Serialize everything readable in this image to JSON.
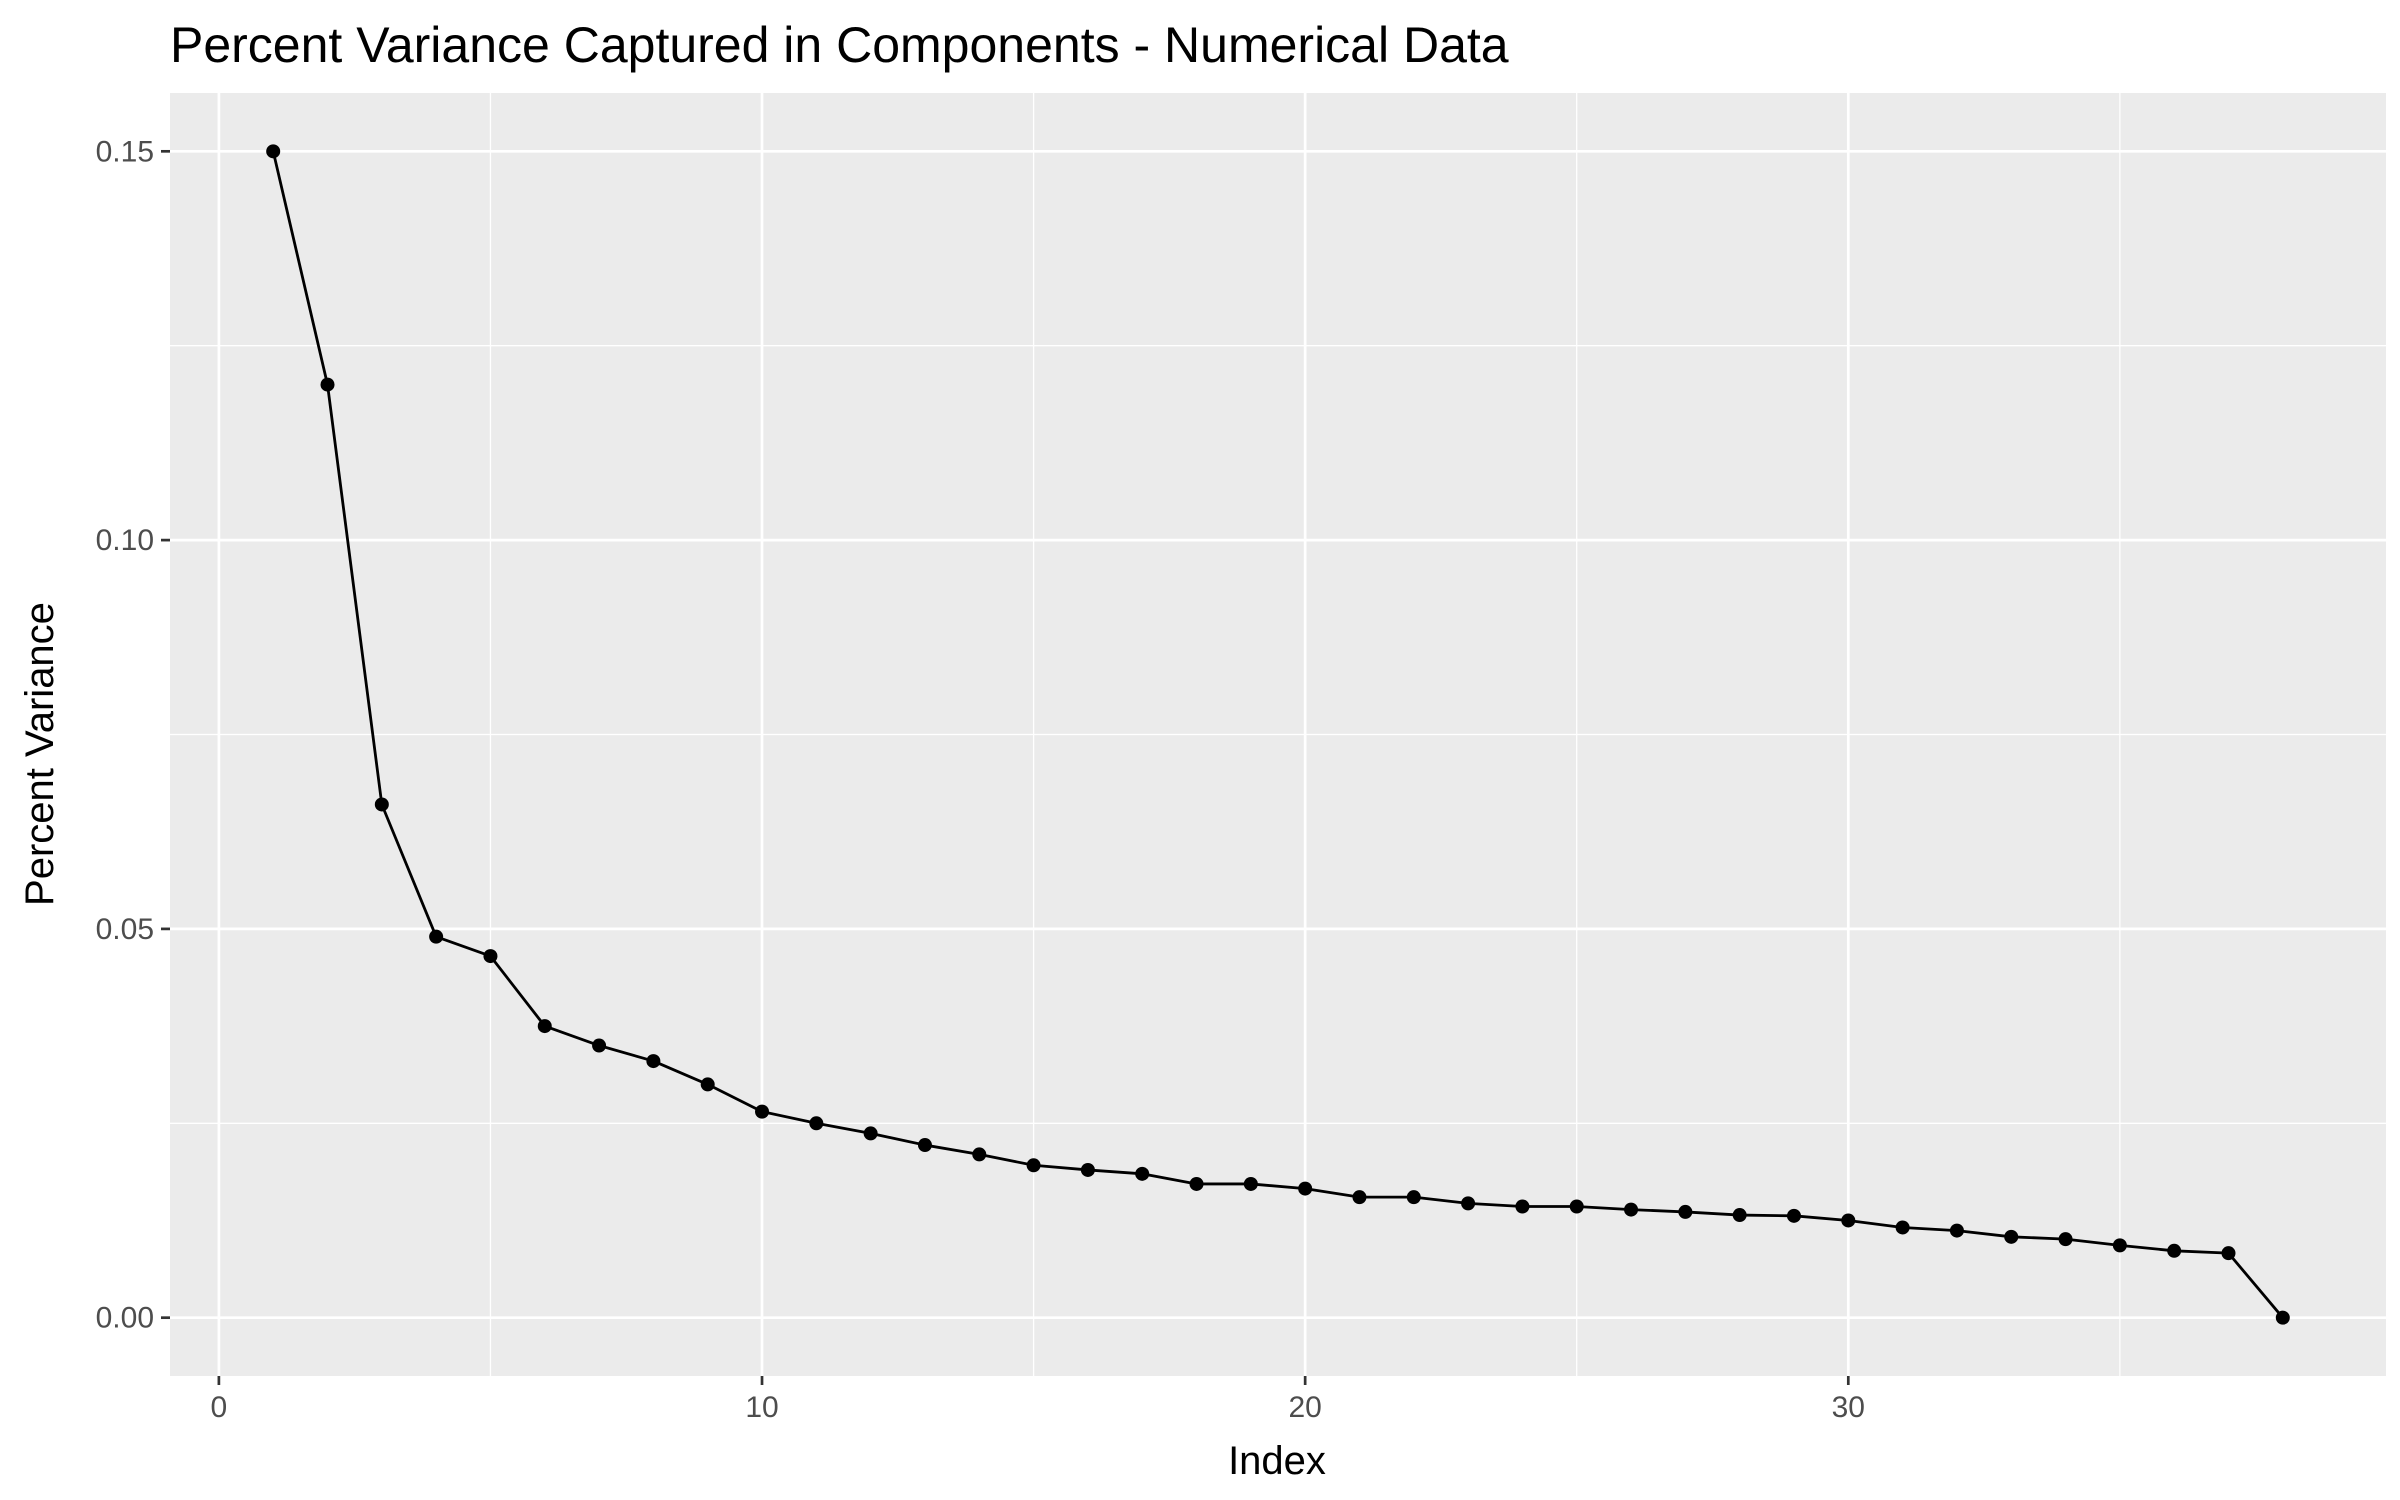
{
  "chart_data": {
    "type": "line",
    "title": "Percent Variance Captured in Components - Numerical Data",
    "xlabel": "Index",
    "ylabel": "Percent Variance",
    "xlim": [
      -0.9,
      39.9
    ],
    "ylim": [
      -0.0075,
      0.1575
    ],
    "x_ticks": [
      0,
      10,
      20,
      30
    ],
    "x_tick_labels": [
      "0",
      "10",
      "20",
      "30"
    ],
    "y_ticks": [
      0.0,
      0.05,
      0.1,
      0.15
    ],
    "y_tick_labels": [
      "0.00",
      "0.05",
      "0.10",
      "0.15"
    ],
    "grid": true,
    "background": "#ebebeb",
    "grid_color": "#ffffff",
    "series": [
      {
        "color": "#000000",
        "x": [
          1,
          2,
          3,
          4,
          5,
          6,
          7,
          8,
          9,
          10,
          11,
          12,
          13,
          14,
          15,
          16,
          17,
          18,
          19,
          20,
          21,
          22,
          23,
          24,
          25,
          26,
          27,
          28,
          29,
          30,
          31,
          32,
          33,
          34,
          35,
          36,
          37,
          38
        ],
        "y": [
          0.15,
          0.12,
          0.066,
          0.049,
          0.0465,
          0.0375,
          0.035,
          0.033,
          0.03,
          0.0265,
          0.025,
          0.0237,
          0.0222,
          0.021,
          0.0196,
          0.019,
          0.0185,
          0.0172,
          0.0172,
          0.0166,
          0.0155,
          0.0155,
          0.0147,
          0.0143,
          0.0143,
          0.0139,
          0.0136,
          0.0132,
          0.0131,
          0.0125,
          0.0116,
          0.0112,
          0.0104,
          0.0101,
          0.0093,
          0.0086,
          0.0083,
          0.0
        ]
      }
    ]
  }
}
